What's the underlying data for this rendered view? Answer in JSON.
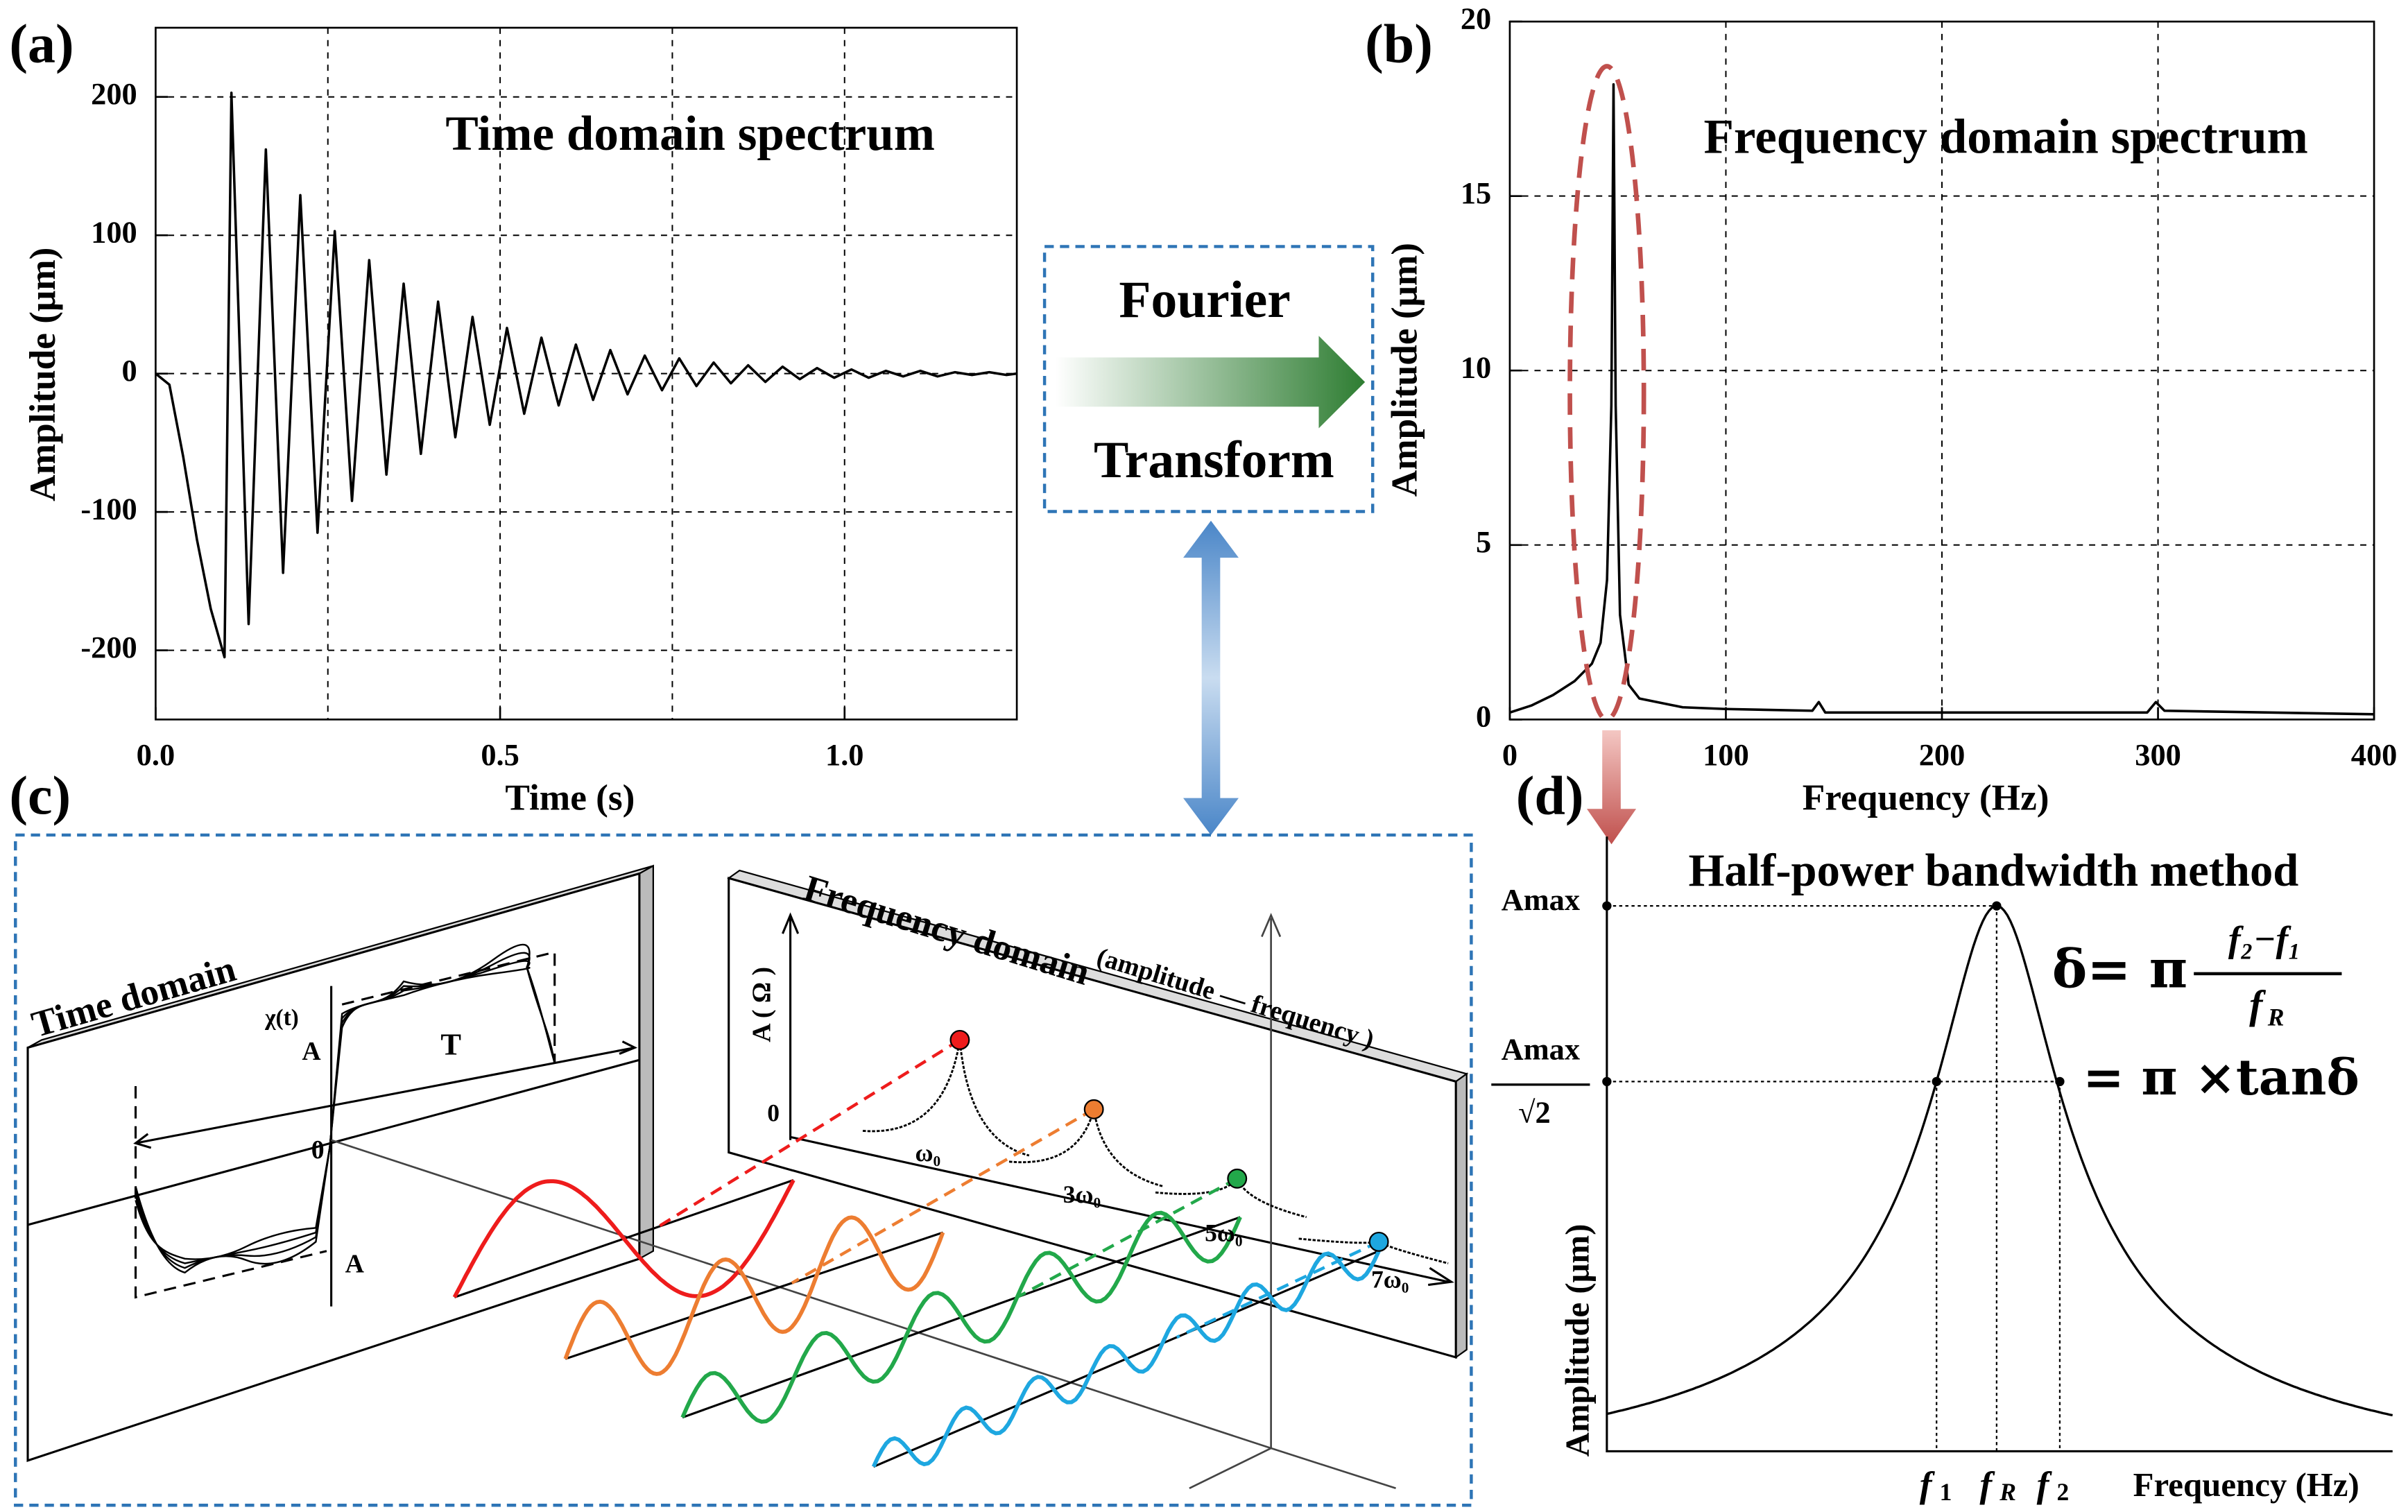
{
  "panel_labels": [
    "(a)",
    "(b)",
    "(c)",
    "(d)"
  ],
  "chart_data": [
    {
      "type": "line",
      "title": "Time domain spectrum",
      "title_color": "#7030a0",
      "x_label": "Time (s)",
      "y_label": "Amplitude (μm)",
      "color": "#000000",
      "x": [
        0,
        0.02,
        0.04,
        0.06,
        0.08,
        0.1,
        0.11,
        0.135,
        0.16,
        0.185,
        0.21,
        0.235,
        0.26,
        0.285,
        0.31,
        0.335,
        0.36,
        0.385,
        0.41,
        0.435,
        0.46,
        0.485,
        0.51,
        0.535,
        0.56,
        0.585,
        0.61,
        0.635,
        0.66,
        0.685,
        0.71,
        0.735,
        0.76,
        0.785,
        0.81,
        0.835,
        0.86,
        0.885,
        0.91,
        0.935,
        0.96,
        0.985,
        1.01,
        1.035,
        1.06,
        1.085,
        1.11,
        1.135,
        1.16,
        1.185,
        1.21,
        1.235,
        1.25
      ],
      "values": [
        0,
        -8,
        -60,
        -120,
        -170,
        -205,
        203,
        -181,
        162,
        -144,
        129,
        -115,
        103,
        -92,
        82,
        -73,
        65,
        -58,
        52,
        -46,
        41,
        -37,
        33,
        -29,
        26,
        -23,
        21,
        -19,
        17,
        -15,
        13,
        -12,
        11,
        -9,
        8,
        -7,
        6,
        -6,
        5,
        -4,
        4,
        -3,
        3,
        -3,
        2,
        -2,
        2,
        -2,
        1,
        -1,
        1,
        -1,
        0
      ],
      "xlim": [
        0,
        1.25
      ],
      "ylim": [
        -250,
        250
      ],
      "xticks": [
        {
          "value": 0,
          "label": "0.0"
        },
        0.5,
        {
          "value": 1,
          "label": "1.0"
        }
      ],
      "xminor": [
        0.25,
        0.75
      ],
      "yticks": [
        -200,
        -100,
        0,
        100,
        200
      ],
      "grid": true
    },
    {
      "type": "line",
      "title": "Frequency domain spectrum",
      "title_color": "#ed7d31",
      "x_label": "Frequency (Hz)",
      "y_label": "Amplitude (μm)",
      "color": "#000000",
      "x": [
        0,
        10,
        20,
        30,
        38,
        42,
        45,
        47,
        48,
        49,
        51,
        55,
        60,
        80,
        100,
        140,
        143,
        146,
        200,
        295,
        299,
        303,
        400
      ],
      "values": [
        0.2,
        0.4,
        0.7,
        1.1,
        1.6,
        2.2,
        4,
        9,
        18.2,
        9,
        3,
        1,
        0.6,
        0.35,
        0.3,
        0.25,
        0.5,
        0.2,
        0.2,
        0.2,
        0.5,
        0.25,
        0.15
      ],
      "xlim": [
        0,
        400
      ],
      "ylim": [
        0,
        20
      ],
      "xticks": [
        0,
        100,
        200,
        300,
        400
      ],
      "yticks": [
        0,
        5,
        10,
        15,
        20
      ],
      "grid": true
    }
  ],
  "transform": {
    "line1": "Fourier",
    "line2": "Transform"
  },
  "diagram_c": {
    "time_title": "Time domain",
    "chi": "χ(t)",
    "amp_top": "A",
    "period": "T",
    "origin": "0",
    "amp_bottom": "A",
    "freq_title": "Frequency domain",
    "freq_sub": "(amplitude — frequency )",
    "freq_axis": "A ( Ω )",
    "freq_origin": "0",
    "harmonics": [
      "ω₀",
      "3ω₀",
      "5ω₀",
      "7ω₀"
    ]
  },
  "diagram_d": {
    "title": "Half-power bandwidth method",
    "amax": "Amax",
    "amax_half": "Amax",
    "root": "√2",
    "formula_lhs": "δ= π",
    "numerator": "f₂−f₁",
    "denominator": {
      "symbol": "f",
      "sub": "R"
    },
    "formula_rhs": "= π ×tanδ",
    "freq_marks": [
      {
        "symbol": "f",
        "sub": "1"
      },
      {
        "symbol": "f",
        "sub": "R"
      },
      {
        "symbol": "f",
        "sub": "2"
      }
    ],
    "x_label": "Frequency (Hz)",
    "y_label": "Amplitude (μm)"
  }
}
